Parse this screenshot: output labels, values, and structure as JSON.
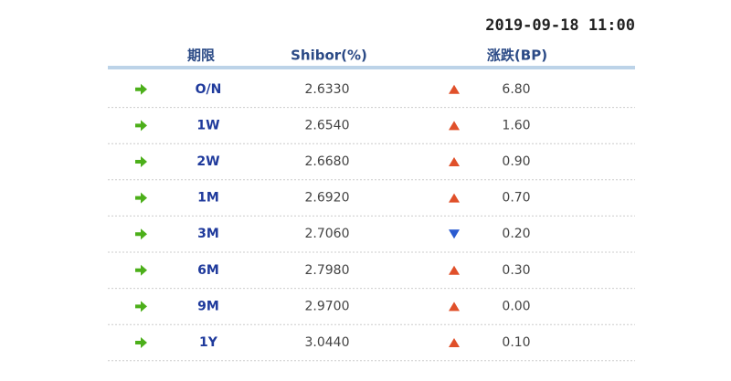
{
  "timestamp": "2019-09-18 11:00",
  "table": {
    "header": [
      "期限",
      "Shibor(%)",
      "涨跌(BP)"
    ],
    "rows": [
      {
        "term": "O/N",
        "rate": "2.6330",
        "trend": "up",
        "change": "6.80"
      },
      {
        "term": "1W",
        "rate": "2.6540",
        "trend": "up",
        "change": "1.60"
      },
      {
        "term": "2W",
        "rate": "2.6680",
        "trend": "up",
        "change": "0.90"
      },
      {
        "term": "1M",
        "rate": "2.6920",
        "trend": "up",
        "change": "0.70"
      },
      {
        "term": "3M",
        "rate": "2.7060",
        "trend": "down",
        "change": "0.20"
      },
      {
        "term": "6M",
        "rate": "2.7980",
        "trend": "up",
        "change": "0.30"
      },
      {
        "term": "9M",
        "rate": "2.9700",
        "trend": "up",
        "change": "0.00"
      },
      {
        "term": "1Y",
        "rate": "3.0440",
        "trend": "up",
        "change": "0.10"
      }
    ]
  }
}
